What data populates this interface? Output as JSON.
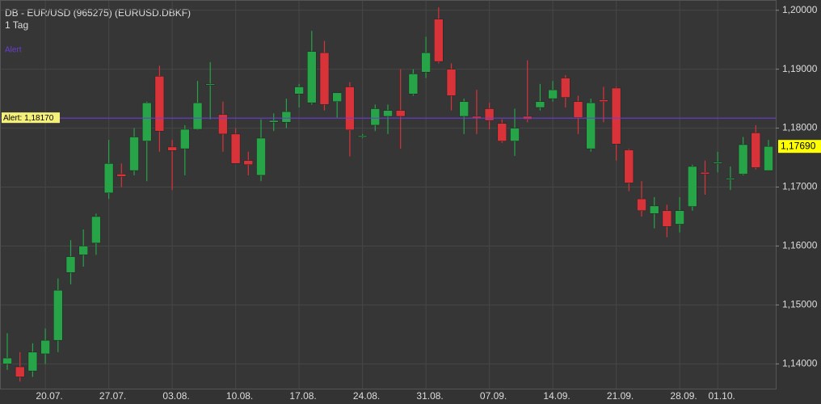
{
  "chart_data": {
    "type": "candlestick",
    "title": "DB - EUR/USD (965275) (EURUSD.DBKF)",
    "subtitle": "1 Tag",
    "legend": "Alert",
    "categories": [
      null,
      null,
      null,
      "20.07.",
      null,
      null,
      null,
      null,
      "27.07.",
      null,
      null,
      null,
      null,
      "03.08.",
      null,
      null,
      null,
      null,
      "10.08.",
      null,
      null,
      null,
      null,
      "17.08.",
      null,
      null,
      null,
      null,
      "24.08.",
      null,
      null,
      null,
      null,
      "31.08.",
      null,
      null,
      null,
      null,
      "07.09.",
      null,
      null,
      null,
      null,
      "14.09.",
      null,
      null,
      null,
      null,
      "21.09.",
      null,
      null,
      null,
      null,
      "28.09.",
      null,
      null,
      "01.10.",
      null,
      null,
      null,
      null
    ],
    "open": [
      1.14,
      1.1395,
      1.1388,
      1.1417,
      1.144,
      1.1555,
      1.1585,
      1.1605,
      1.169,
      1.1722,
      1.1728,
      1.1778,
      1.1888,
      1.1768,
      1.1765,
      1.1798,
      1.1873,
      1.1823,
      1.179,
      1.1745,
      1.172,
      1.181,
      1.181,
      1.1858,
      1.1843,
      1.1928,
      1.1845,
      1.187,
      1.1785,
      1.1805,
      1.182,
      1.183,
      1.1858,
      1.1895,
      1.1985,
      1.19,
      1.182,
      1.182,
      1.1833,
      1.1808,
      1.1778,
      1.182,
      1.1835,
      1.185,
      1.1885,
      1.1845,
      1.1765,
      1.1848,
      1.1868,
      1.1763,
      1.168,
      1.1655,
      1.166,
      1.1637,
      1.1667,
      1.1725,
      1.174,
      1.1713,
      1.1722,
      1.1792,
      1.1728
    ],
    "high": [
      1.1452,
      1.142,
      1.1435,
      1.146,
      1.1545,
      1.161,
      1.1628,
      1.1655,
      1.178,
      1.174,
      1.18,
      1.1845,
      1.1906,
      1.178,
      1.1805,
      1.188,
      1.1912,
      1.1845,
      1.18,
      1.176,
      1.1815,
      1.1825,
      1.185,
      1.1875,
      1.1965,
      1.1948,
      1.186,
      1.1878,
      1.179,
      1.184,
      1.184,
      1.19,
      1.19,
      1.1955,
      1.2005,
      1.191,
      1.185,
      1.1865,
      1.1843,
      1.1815,
      1.1833,
      1.1915,
      1.1875,
      1.188,
      1.189,
      1.1855,
      1.185,
      1.187,
      1.187,
      1.1765,
      1.171,
      1.1683,
      1.167,
      1.1683,
      1.1738,
      1.1745,
      1.176,
      1.1735,
      1.1785,
      1.1805,
      1.178
    ],
    "low": [
      1.139,
      1.137,
      1.1378,
      1.14,
      1.142,
      1.1535,
      1.1565,
      1.1585,
      1.168,
      1.17,
      1.172,
      1.171,
      1.176,
      1.1695,
      1.172,
      1.1797,
      1.1815,
      1.176,
      1.174,
      1.172,
      1.171,
      1.1795,
      1.18,
      1.1835,
      1.184,
      1.183,
      1.1818,
      1.1752,
      1.1783,
      1.1795,
      1.179,
      1.1765,
      1.1855,
      1.1885,
      1.191,
      1.183,
      1.179,
      1.179,
      1.1798,
      1.1775,
      1.1753,
      1.181,
      1.183,
      1.1845,
      1.1835,
      1.179,
      1.176,
      1.181,
      1.1745,
      1.1693,
      1.165,
      1.163,
      1.1615,
      1.1623,
      1.166,
      1.1687,
      1.1725,
      1.1695,
      1.172,
      1.173,
      1.1728
    ],
    "close": [
      1.141,
      1.1378,
      1.142,
      1.144,
      1.1525,
      1.1582,
      1.16,
      1.165,
      1.174,
      1.1718,
      1.1785,
      1.1843,
      1.1795,
      1.1762,
      1.1798,
      1.1843,
      1.1875,
      1.179,
      1.174,
      1.1738,
      1.1783,
      1.1813,
      1.1828,
      1.187,
      1.193,
      1.184,
      1.186,
      1.1797,
      1.1787,
      1.1833,
      1.183,
      1.182,
      1.1892,
      1.1928,
      1.1913,
      1.1855,
      1.1845,
      1.1817,
      1.1813,
      1.1778,
      1.18,
      1.1815,
      1.1845,
      1.1865,
      1.1852,
      1.1818,
      1.1843,
      1.1845,
      1.1773,
      1.1707,
      1.166,
      1.1668,
      1.1633,
      1.166,
      1.1735,
      1.1722,
      1.1742,
      1.1715,
      1.1772,
      1.1733,
      1.1769
    ],
    "last_label": "1,17690",
    "up_color": "#27a348",
    "down_color": "#d9333a",
    "alert": {
      "value": 1.1817,
      "label": "Alert: 1,18170",
      "color": "#6a3fd0"
    },
    "ylim": [
      1.1358,
      1.2016
    ],
    "yticks": [
      {
        "value": 1.14,
        "label": "1,14000"
      },
      {
        "value": 1.15,
        "label": "1,15000"
      },
      {
        "value": 1.16,
        "label": "1,16000"
      },
      {
        "value": 1.17,
        "label": "1,17000"
      },
      {
        "value": 1.18,
        "label": "1,18000"
      },
      {
        "value": 1.19,
        "label": "1,19000"
      },
      {
        "value": 1.2,
        "label": "1,20000"
      }
    ],
    "grid": true
  }
}
